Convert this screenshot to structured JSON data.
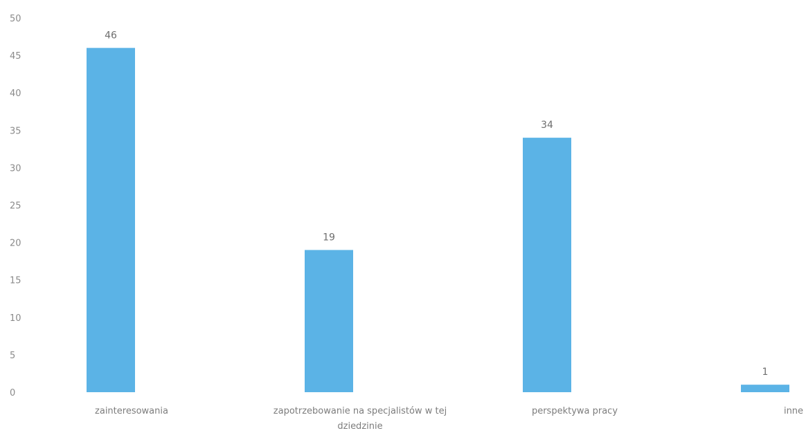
{
  "chart_data": {
    "type": "bar",
    "categories": [
      [
        "zainteresowania"
      ],
      [
        "zapotrzebowanie na specjalistów w tej",
        "dziedzinie"
      ],
      [
        "perspektywa pracy"
      ],
      [
        "inne"
      ]
    ],
    "values": [
      46,
      19,
      34,
      1
    ],
    "data_labels": [
      "46",
      "19",
      "34",
      "1"
    ],
    "y_ticks": [
      "0",
      "5",
      "10",
      "15",
      "20",
      "25",
      "30",
      "35",
      "40",
      "45",
      "50"
    ],
    "ylim": [
      0,
      50
    ],
    "grid": false,
    "legend": "none",
    "bar_color": "#5bb3e6"
  }
}
